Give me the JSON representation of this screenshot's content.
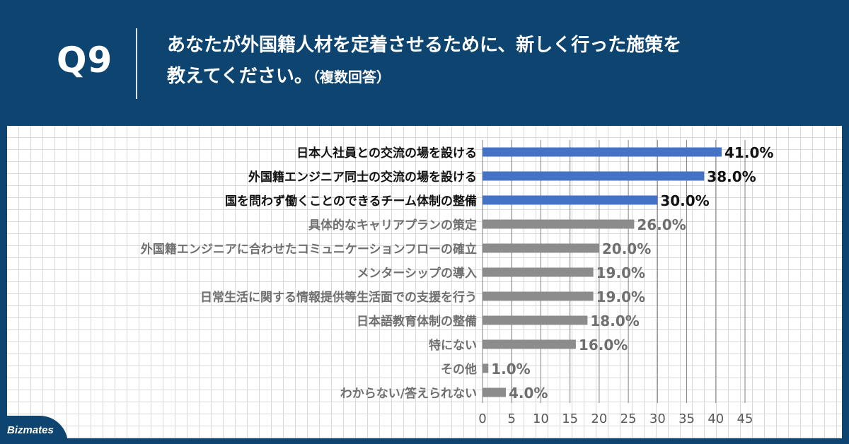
{
  "header": {
    "question_number": "Q9",
    "title_line1": "あなたが外国籍人材を定着させるために、新しく行った施策を",
    "title_line2": "教えてください。",
    "title_note": "（複数回答）"
  },
  "brand": {
    "logo_text": "Bizmates"
  },
  "colors": {
    "header_bg": "#0d4470",
    "bar_highlight": "#4472c4",
    "bar_normal": "#8c8c8c",
    "label_highlight": "#111111",
    "label_normal": "#6f6f6f"
  },
  "chart_data": {
    "type": "bar",
    "orientation": "horizontal",
    "title": "",
    "xlabel": "",
    "ylabel": "",
    "xlim": [
      0,
      45
    ],
    "x_ticks": [
      0,
      5,
      10,
      15,
      20,
      25,
      30,
      35,
      40,
      45
    ],
    "grid": true,
    "categories": [
      "日本人社員との交流の場を設ける",
      "外国籍エンジニア同士の交流の場を設ける",
      "国を問わず働くことのできるチーム体制の整備",
      "具体的なキャリアプランの策定",
      "外国籍エンジニアに合わせたコミュニケーションフローの確立",
      "メンターシップの導入",
      "日常生活に関する情報提供等生活面での支援を行う",
      "日本語教育体制の整備",
      "特にない",
      "その他",
      "わからない/答えられない"
    ],
    "values": [
      41.0,
      38.0,
      30.0,
      26.0,
      20.0,
      19.0,
      19.0,
      18.0,
      16.0,
      1.0,
      4.0
    ],
    "value_labels": [
      "41.0%",
      "38.0%",
      "30.0%",
      "26.0%",
      "20.0%",
      "19.0%",
      "19.0%",
      "18.0%",
      "16.0%",
      "1.0%",
      "4.0%"
    ],
    "highlighted": [
      true,
      true,
      true,
      false,
      false,
      false,
      false,
      false,
      false,
      false,
      false
    ]
  }
}
